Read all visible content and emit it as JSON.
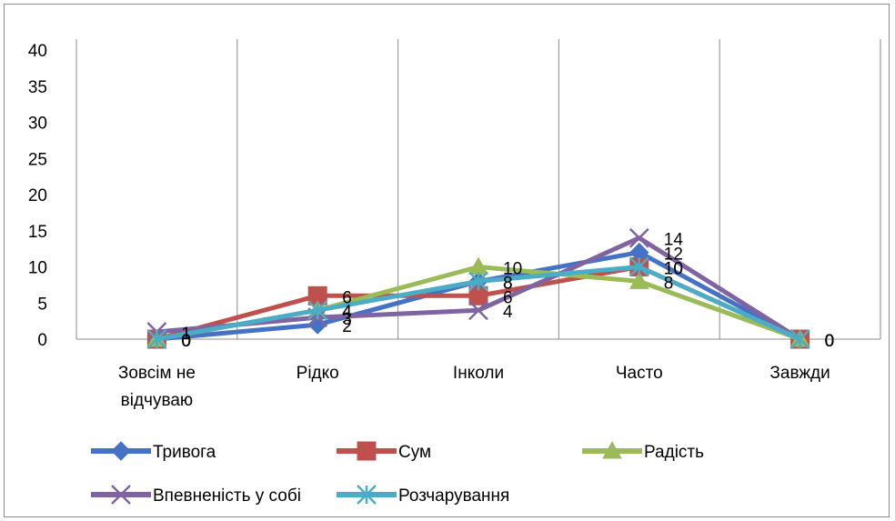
{
  "chart_data": {
    "type": "line",
    "title": "",
    "xlabel": "",
    "ylabel": "",
    "ylim": [
      0,
      40
    ],
    "y_ticks": [
      "0",
      "5",
      "10",
      "15",
      "20",
      "25",
      "30",
      "35",
      "40"
    ],
    "categories": [
      [
        "Зовсім не",
        "відчуваю"
      ],
      [
        "Рідко"
      ],
      [
        "Інколи"
      ],
      [
        "Часто"
      ],
      [
        "Завжди"
      ]
    ],
    "grid": "vertical",
    "legend_position": "bottom",
    "series": [
      {
        "name": "Тривога",
        "values": [
          0,
          2,
          8,
          12,
          0
        ],
        "color": "#4472C4",
        "marker": "diamond"
      },
      {
        "name": "Сум",
        "values": [
          0,
          6,
          6,
          10,
          0
        ],
        "color": "#C0504D",
        "marker": "square"
      },
      {
        "name": "Радість",
        "values": [
          0,
          4,
          10,
          8,
          0
        ],
        "color": "#9BBB59",
        "marker": "triangle"
      },
      {
        "name": "Впевненість у собі",
        "values": [
          1,
          3,
          4,
          14,
          0
        ],
        "color": "#8064A2",
        "marker": "x"
      },
      {
        "name": "Розчарування",
        "values": [
          0,
          4,
          8,
          10,
          0
        ],
        "color": "#4BACC6",
        "marker": "star"
      }
    ]
  }
}
